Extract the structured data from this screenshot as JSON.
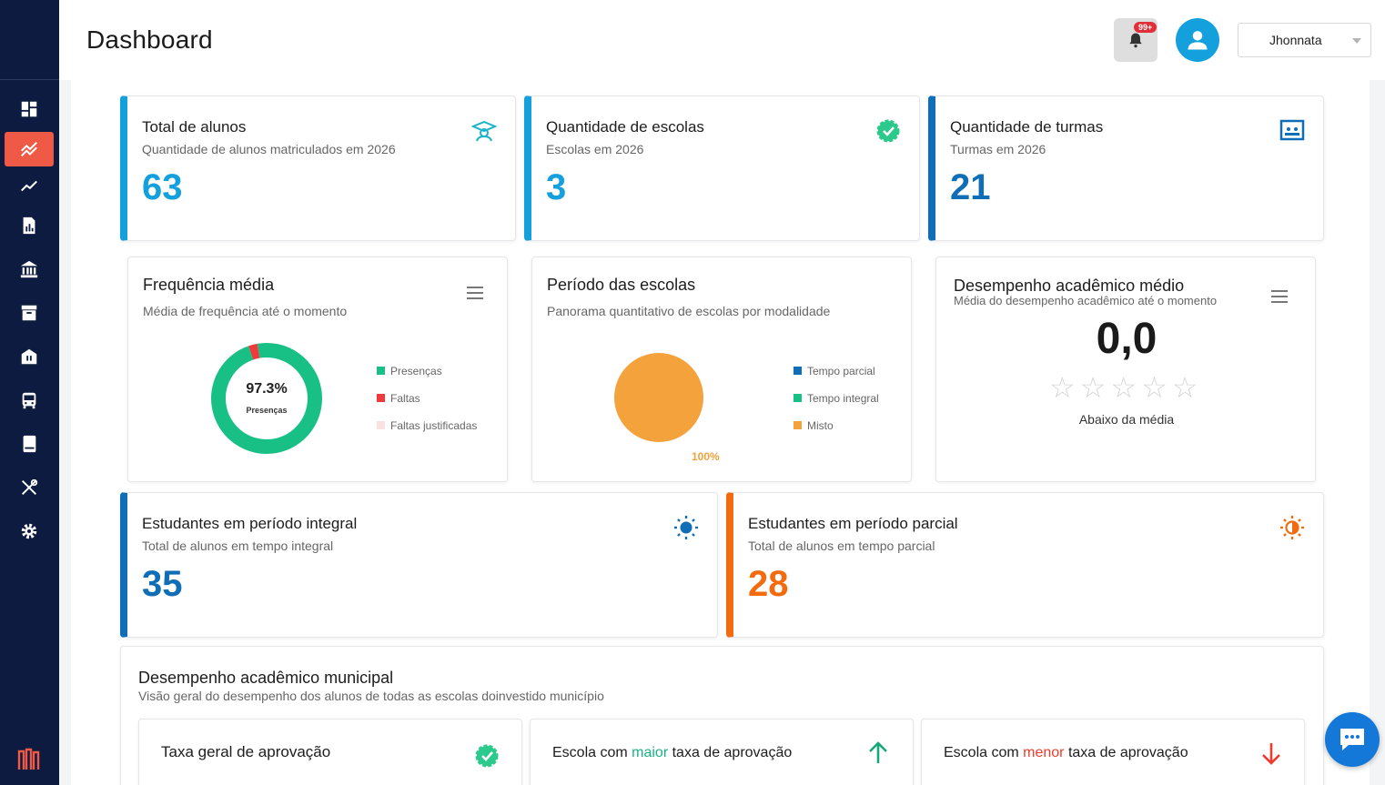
{
  "header": {
    "title": "Dashboard",
    "notification_badge": "99+",
    "user_name": "Jhonnata"
  },
  "sidebar": {
    "items": [
      {
        "icon": "dashboard-icon",
        "active": false
      },
      {
        "icon": "analytics-icon",
        "active": true
      },
      {
        "icon": "trending-icon",
        "active": false
      },
      {
        "icon": "report-icon",
        "active": false
      },
      {
        "icon": "institution-icon",
        "active": false
      },
      {
        "icon": "archive-icon",
        "active": false
      },
      {
        "icon": "school-icon",
        "active": false
      },
      {
        "icon": "bus-icon",
        "active": false
      },
      {
        "icon": "book-icon",
        "active": false
      },
      {
        "icon": "tools-icon",
        "active": false
      },
      {
        "icon": "gear-icon",
        "active": false
      }
    ]
  },
  "stats": {
    "alunos": {
      "title": "Total de alunos",
      "subtitle": "Quantidade de alunos matriculados em 2026",
      "value": "63",
      "color": "#14a0dd"
    },
    "escolas": {
      "title": "Quantidade de escolas",
      "subtitle": "Escolas em 2026",
      "value": "3",
      "color": "#14a0dd"
    },
    "turmas": {
      "title": "Quantidade de turmas",
      "subtitle": "Turmas em 2026",
      "value": "21",
      "color": "#0f6eb5"
    }
  },
  "frequencia": {
    "title": "Frequência média",
    "subtitle": "Média de frequência até o momento",
    "center_value": "97.3%",
    "center_label": "Presenças",
    "legend": [
      "Presenças",
      "Faltas",
      "Faltas justificadas"
    ],
    "colors": [
      "#18c086",
      "#ee3b3b",
      "#fbe0e0"
    ],
    "values": [
      97.3,
      2.7,
      0
    ]
  },
  "periodo": {
    "title": "Período das escolas",
    "subtitle": "Panorama quantitativo de escolas por modalidade",
    "pie_label": "100%",
    "legend": [
      "Tempo parcial",
      "Tempo integral",
      "Misto"
    ],
    "colors": [
      "#0f6eb5",
      "#18c086",
      "#f4a23c"
    ]
  },
  "desempenho": {
    "title": "Desempenho acadêmico médio",
    "subtitle": "Média do desempenho acadêmico até o momento",
    "value": "0,0",
    "stars": 5,
    "status": "Abaixo da média"
  },
  "periodos_alunos": {
    "integral": {
      "title": "Estudantes em período integral",
      "subtitle": "Total de alunos em tempo integral",
      "value": "35",
      "color": "#0f6eb5"
    },
    "parcial": {
      "title": "Estudantes em período parcial",
      "subtitle": "Total de alunos em tempo parcial",
      "value": "28",
      "color": "#f26b0f"
    }
  },
  "municipal": {
    "title": "Desempenho acadêmico municipal",
    "subtitle": "Visão geral do desempenho dos alunos de todas as escolas doinvestido município",
    "taxa_geral": "Taxa geral de aprovação",
    "maior": {
      "prefix": "Escola com ",
      "highlight": "maior",
      "suffix": " taxa de aprovação"
    },
    "menor": {
      "prefix": "Escola com ",
      "highlight": "menor",
      "suffix": " taxa de aprovação"
    }
  }
}
